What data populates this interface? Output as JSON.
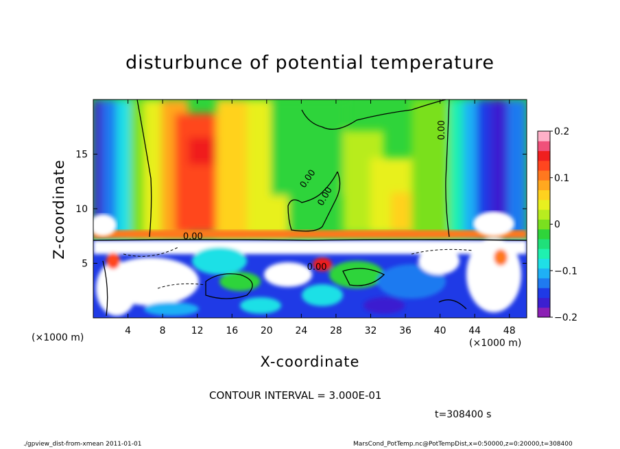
{
  "chart_data": {
    "type": "heatmap",
    "title": "disturbunce of potential temperature",
    "xlabel": "X-coordinate",
    "ylabel": "Z-coordinate",
    "x_unit_label": "(×1000 m)",
    "x_range": [
      0,
      50
    ],
    "y_range": [
      0,
      20
    ],
    "x_ticks": [
      4,
      8,
      12,
      16,
      20,
      24,
      28,
      32,
      36,
      40,
      44,
      48
    ],
    "y_ticks": [
      5,
      10,
      15
    ],
    "colorbar": {
      "range": [
        -0.2,
        0.2
      ],
      "ticks": [
        {
          "value": 0.2,
          "label": "0.2"
        },
        {
          "value": 0.1,
          "label": "0.1"
        },
        {
          "value": 0,
          "label": "0"
        },
        {
          "value": -0.1,
          "label": "−0.1"
        },
        {
          "value": -0.2,
          "label": "−0.2"
        }
      ],
      "colors": [
        "#8b1fb4",
        "#3b1fd0",
        "#1f3ae6",
        "#1f7af0",
        "#1fb0f5",
        "#1fe0e6",
        "#1ff0b0",
        "#1fe07a",
        "#2fd43a",
        "#7ae01f",
        "#b8ec1f",
        "#e8f01f",
        "#ffd21f",
        "#ffa81f",
        "#ff781f",
        "#ff461f",
        "#f01f1f",
        "#f0507a",
        "#ffb0c8"
      ]
    },
    "contour_labels": [
      "0.00",
      "0.00",
      "0.00",
      "0.00",
      "0.00"
    ],
    "contour_interval": "CONTOUR INTERVAL = 3.000E-01",
    "time_label": "t=308400 s"
  },
  "footer": {
    "left": "./gpview_dist-from-xmean  2011-01-01",
    "right": "MarsCond_PotTemp.nc@PotTempDist,x=0:50000,z=0:20000,t=308400"
  }
}
